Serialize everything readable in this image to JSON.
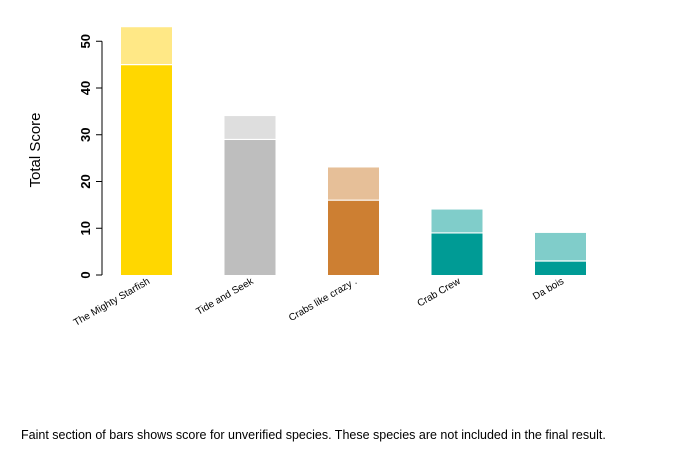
{
  "chart_data": {
    "type": "bar",
    "stacked": true,
    "categories": [
      "The Mighty Starfish",
      "Tide and Seek",
      "Crabs like crazy .",
      "Crab Crew",
      "Da bois"
    ],
    "series": [
      {
        "key": "verified",
        "values": [
          45,
          29,
          16,
          9,
          3
        ]
      },
      {
        "key": "unverified",
        "values": [
          8,
          5,
          7,
          5,
          6
        ]
      }
    ],
    "colors": {
      "verified": [
        "#FFD700",
        "#BEBEBE",
        "#CD7F32",
        "#009B95",
        "#009B95"
      ],
      "unverified": [
        "#FFE886",
        "#DEDEDE",
        "#E6BF98",
        "#80CDCA",
        "#80CDCA"
      ]
    },
    "ylabel": "Total Score",
    "xlabel": "",
    "yticks": [
      0,
      10,
      20,
      30,
      40,
      50
    ],
    "ylim": [
      0,
      53
    ],
    "grid": false
  },
  "caption": "Faint section of bars shows score for unverified species. These species are not included in the final result."
}
